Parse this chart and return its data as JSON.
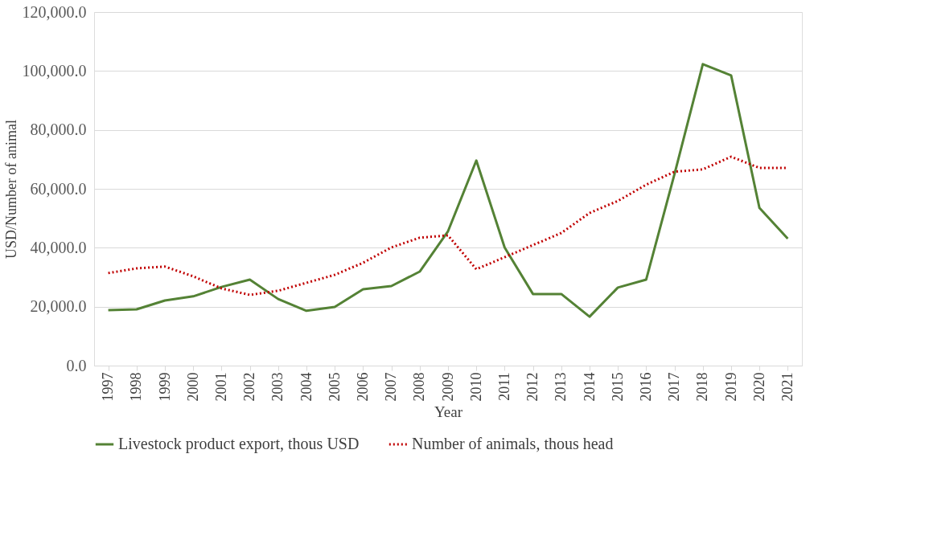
{
  "chart_data": {
    "type": "line",
    "xlabel": "Year",
    "ylabel": "USD/Number of animal",
    "categories": [
      "1997",
      "1998",
      "1999",
      "2000",
      "2001",
      "2002",
      "2003",
      "2004",
      "2005",
      "2006",
      "2007",
      "2008",
      "2009",
      "2010",
      "2011",
      "2012",
      "2013",
      "2014",
      "2015",
      "2016",
      "2017",
      "2018",
      "2019",
      "2020",
      "2021"
    ],
    "series": [
      {
        "name": "Livestock product export, thous USD",
        "color": "#548235",
        "line_style": "solid",
        "values": [
          18800,
          19100,
          22100,
          23500,
          26700,
          29200,
          22600,
          18600,
          19900,
          25900,
          27000,
          31900,
          45600,
          69600,
          40100,
          24300,
          24300,
          16600,
          26500,
          29200,
          65000,
          102300,
          98500,
          53500,
          43100
        ]
      },
      {
        "name": "Number of animals, thous head",
        "color": "#c00000",
        "line_style": "dotted",
        "values": [
          31400,
          33000,
          33600,
          30300,
          26200,
          24000,
          25400,
          28100,
          30800,
          34900,
          40100,
          43400,
          44200,
          32700,
          36800,
          40900,
          45000,
          51800,
          55900,
          61400,
          65800,
          66600,
          70900,
          67100,
          67100
        ]
      }
    ],
    "ylim": [
      0,
      120000
    ],
    "yticks": [
      {
        "value": 0,
        "label": "0.0"
      },
      {
        "value": 20000,
        "label": "20,000.0"
      },
      {
        "value": 40000,
        "label": "40,000.0"
      },
      {
        "value": 60000,
        "label": "60,000.0"
      },
      {
        "value": 80000,
        "label": "80,000.0"
      },
      {
        "value": 100000,
        "label": "100,000.0"
      },
      {
        "value": 120000,
        "label": "120,000.0"
      }
    ],
    "grid": "y",
    "legend": "bottom",
    "marker": "none"
  }
}
